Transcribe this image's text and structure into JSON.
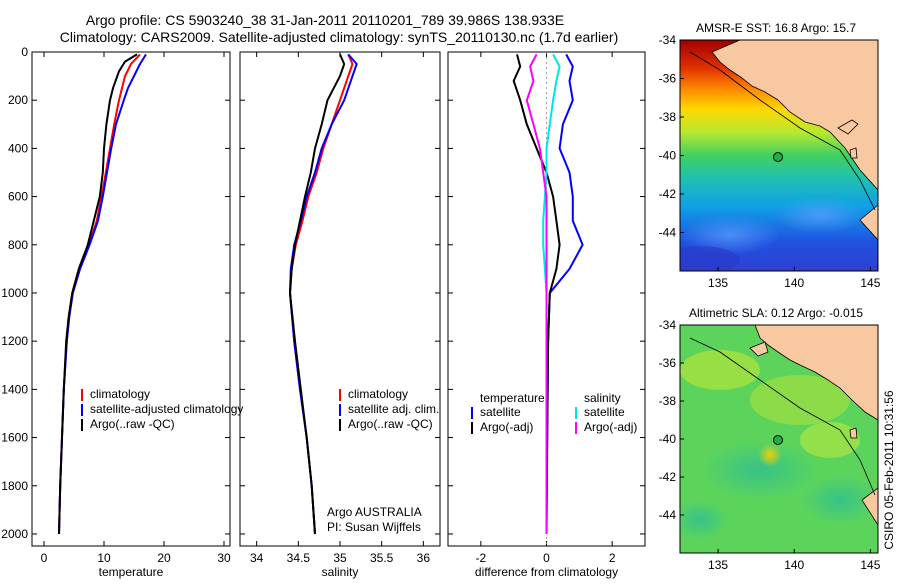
{
  "header": {
    "line1": "Argo profile: CS 5903240_38 31-Jan-2011 20110201_789 39.986S 138.933E",
    "line2": "Climatology: CARS2009. Satellite-adjusted climatology: synTS_20110130.nc (1.7d earlier)"
  },
  "credit": "CSIRO 05-Feb-2011 10:31:56",
  "colors": {
    "climatology": "#ff0000",
    "satellite": "#0000ff",
    "argo": "#000000",
    "satellite_diff_salinity": "#00e5e5",
    "argo_diff_salinity": "#ff00ff"
  },
  "chart_data": [
    {
      "type": "line",
      "id": "temperature",
      "xlabel": "temperature",
      "xlim": [
        -2,
        31
      ],
      "ylim": [
        2050,
        0
      ],
      "y_reversed": true,
      "xticks": [
        "0",
        "10",
        "20",
        "30"
      ],
      "yticks": [
        "0",
        "200",
        "400",
        "600",
        "800",
        "1000",
        "1200",
        "1400",
        "1600",
        "1800",
        "2000"
      ],
      "legend": [
        "climatology",
        "satellite-adjusted climatology",
        "Argo(..raw -QC)"
      ],
      "series": [
        {
          "name": "climatology",
          "color": "#ff0000",
          "y": [
            10,
            50,
            100,
            150,
            200,
            300,
            400,
            500,
            600,
            700,
            800,
            900,
            1000,
            1100,
            1200,
            1400,
            1600,
            1800,
            2000
          ],
          "x": [
            16.0,
            14.5,
            13.5,
            13.0,
            12.5,
            11.7,
            11.0,
            10.3,
            9.6,
            8.8,
            7.5,
            6.0,
            4.8,
            4.2,
            3.8,
            3.3,
            3.0,
            2.7,
            2.5
          ]
        },
        {
          "name": "satellite-adjusted climatology",
          "color": "#0000ff",
          "y": [
            10,
            50,
            100,
            150,
            200,
            300,
            400,
            500,
            600,
            700,
            800,
            900,
            1000,
            1100,
            1200,
            1400,
            1600,
            1800,
            2000
          ],
          "x": [
            17.0,
            16.0,
            15.0,
            14.0,
            13.3,
            12.0,
            11.2,
            10.5,
            9.8,
            9.0,
            7.6,
            6.0,
            4.8,
            4.2,
            3.8,
            3.3,
            3.0,
            2.7,
            2.5
          ]
        },
        {
          "name": "Argo(..raw -QC)",
          "color": "#000000",
          "y": [
            10,
            40,
            80,
            150,
            200,
            300,
            400,
            500,
            600,
            700,
            800,
            900,
            1000,
            1100,
            1200,
            1400,
            1600,
            1800,
            2000
          ],
          "x": [
            15.5,
            13.5,
            12.5,
            11.5,
            11.0,
            10.4,
            10.0,
            9.8,
            9.3,
            8.3,
            7.3,
            5.8,
            4.7,
            4.1,
            3.7,
            3.3,
            3.0,
            2.7,
            2.5
          ]
        }
      ]
    },
    {
      "type": "line",
      "id": "salinity",
      "xlabel": "salinity",
      "xlim": [
        33.8,
        36.2
      ],
      "ylim": [
        2050,
        0
      ],
      "y_reversed": true,
      "xticks": [
        "34",
        "34.5",
        "35",
        "35.5",
        "36"
      ],
      "legend": [
        "climatology",
        "satellite adj. clim.",
        "Argo(..raw -QC)"
      ],
      "annotations": [
        "Argo AUSTRALIA",
        "PI: Susan Wijffels"
      ],
      "series": [
        {
          "name": "climatology",
          "color": "#ff0000",
          "y": [
            10,
            50,
            100,
            200,
            300,
            400,
            500,
            600,
            700,
            800,
            900,
            1000,
            1200,
            1400,
            1600,
            1800,
            2000
          ],
          "x": [
            35.1,
            35.15,
            35.1,
            35.0,
            34.9,
            34.8,
            34.72,
            34.62,
            34.55,
            34.47,
            34.42,
            34.4,
            34.45,
            34.52,
            34.6,
            34.66,
            34.7
          ]
        },
        {
          "name": "satellite adj. clim.",
          "color": "#0000ff",
          "y": [
            10,
            50,
            100,
            200,
            300,
            400,
            500,
            600,
            700,
            800,
            900,
            1000,
            1200,
            1400,
            1600,
            1800,
            2000
          ],
          "x": [
            35.1,
            35.2,
            35.15,
            35.05,
            34.9,
            34.78,
            34.7,
            34.6,
            34.53,
            34.45,
            34.41,
            34.4,
            34.45,
            34.52,
            34.6,
            34.66,
            34.7
          ]
        },
        {
          "name": "Argo(..raw -QC)",
          "color": "#000000",
          "y": [
            10,
            50,
            100,
            200,
            300,
            400,
            500,
            600,
            700,
            800,
            900,
            1000,
            1200,
            1400,
            1600,
            1800,
            2000
          ],
          "x": [
            35.0,
            35.05,
            35.0,
            34.85,
            34.78,
            34.7,
            34.65,
            34.58,
            34.52,
            34.46,
            34.42,
            34.4,
            34.46,
            34.53,
            34.6,
            34.66,
            34.7
          ]
        }
      ]
    },
    {
      "type": "line",
      "id": "difference",
      "xlabel": "difference from climatology",
      "xlim": [
        -3,
        3
      ],
      "ylim": [
        2050,
        0
      ],
      "y_reversed": true,
      "xticks": [
        "-2",
        "0",
        "2"
      ],
      "legend_groups": [
        {
          "title": "temperature",
          "entries": [
            "satellite",
            "Argo(-adj)"
          ]
        },
        {
          "title": "salinity",
          "entries": [
            "satellite",
            "Argo(-adj)"
          ]
        }
      ],
      "series": [
        {
          "name": "temperature satellite",
          "color": "#0000ff",
          "y": [
            10,
            60,
            120,
            200,
            300,
            400,
            500,
            600,
            700,
            800,
            900,
            1000,
            1200,
            1600,
            2000
          ],
          "x": [
            0.6,
            0.8,
            0.7,
            0.8,
            0.5,
            0.4,
            0.7,
            0.8,
            0.8,
            1.1,
            0.7,
            0.1,
            0.05,
            0.02,
            0.0
          ]
        },
        {
          "name": "temperature Argo(-adj)",
          "color": "#000000",
          "y": [
            10,
            60,
            120,
            200,
            300,
            400,
            500,
            600,
            700,
            800,
            900,
            1000,
            1200,
            1600,
            2000
          ],
          "x": [
            -0.9,
            -0.8,
            -1.0,
            -0.8,
            -0.6,
            -0.3,
            0.0,
            0.2,
            0.3,
            0.4,
            0.3,
            0.1,
            0.05,
            0.02,
            0.0
          ]
        },
        {
          "name": "salinity satellite",
          "color": "#00e5e5",
          "y": [
            10,
            60,
            120,
            200,
            300,
            400,
            500,
            600,
            700,
            800,
            900,
            1000,
            1200,
            1600,
            2000
          ],
          "x": [
            0.2,
            0.4,
            0.3,
            0.2,
            0.1,
            0.0,
            0.0,
            -0.05,
            -0.1,
            -0.1,
            -0.05,
            0.0,
            0.0,
            0.0,
            0.0
          ]
        },
        {
          "name": "salinity Argo(-adj)",
          "color": "#ff00ff",
          "y": [
            10,
            60,
            120,
            200,
            300,
            400,
            500,
            600,
            700,
            800,
            900,
            1000,
            1200,
            1600,
            2000
          ],
          "x": [
            -0.3,
            -0.5,
            -0.4,
            -0.6,
            -0.4,
            -0.2,
            -0.1,
            0.0,
            0.0,
            0.0,
            0.0,
            0.0,
            0.0,
            0.0,
            0.0
          ]
        }
      ]
    },
    {
      "type": "heatmap",
      "id": "sst_map",
      "title": "AMSR-E SST: 16.8 Argo: 15.7",
      "xlim": [
        132.5,
        145.5
      ],
      "ylim": [
        -46,
        -34
      ],
      "xticks": [
        "135",
        "140",
        "145"
      ],
      "yticks": [
        "-34",
        "-36",
        "-38",
        "-40",
        "-42",
        "-44"
      ],
      "marker": {
        "lon": 138.933,
        "lat": -39.986
      }
    },
    {
      "type": "heatmap",
      "id": "sla_map",
      "title": "Altimetric SLA: 0.12 Argo: -0.015",
      "xlim": [
        132.5,
        145.5
      ],
      "ylim": [
        -46,
        -34
      ],
      "xticks": [
        "135",
        "140",
        "145"
      ],
      "yticks": [
        "-34",
        "-36",
        "-38",
        "-40",
        "-42",
        "-44"
      ],
      "marker": {
        "lon": 138.933,
        "lat": -39.986
      }
    }
  ]
}
